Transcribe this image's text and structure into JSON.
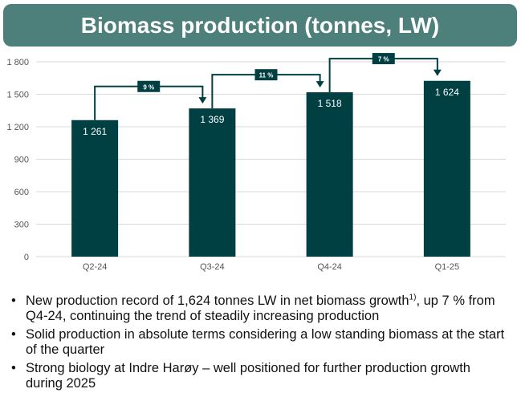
{
  "header": {
    "title": "Biomass production (tonnes, LW)"
  },
  "chart_data": {
    "type": "bar",
    "categories": [
      "Q2-24",
      "Q3-24",
      "Q4-24",
      "Q1-25"
    ],
    "values": [
      1261,
      1369,
      1518,
      1624
    ],
    "value_labels": [
      "1 261",
      "1 369",
      "1 518",
      "1 624"
    ],
    "ylim": [
      0,
      1800
    ],
    "yticks": [
      0,
      300,
      600,
      900,
      1200,
      1500,
      1800
    ],
    "ytick_labels": [
      "0",
      "300",
      "600",
      "900",
      "1 200",
      "1 500",
      "1 800"
    ],
    "grid": true,
    "bar_color": "#003f42",
    "growth_annotations": [
      {
        "from": 0,
        "to": 1,
        "label": "9 %"
      },
      {
        "from": 1,
        "to": 2,
        "label": "11 %"
      },
      {
        "from": 2,
        "to": 3,
        "label": "7 %"
      }
    ]
  },
  "bullets": [
    {
      "text": "New production record of 1,624 tonnes LW in net biomass growth",
      "sup": "1)",
      "rest": ", up 7 % from Q4-24, continuing the trend of steadily increasing production"
    },
    {
      "text": "Solid production in absolute terms considering a low standing biomass at the start of the quarter"
    },
    {
      "text": "Strong biology at Indre Harøy – well positioned for further production growth during 2025"
    }
  ],
  "bullet_symbol": "•"
}
